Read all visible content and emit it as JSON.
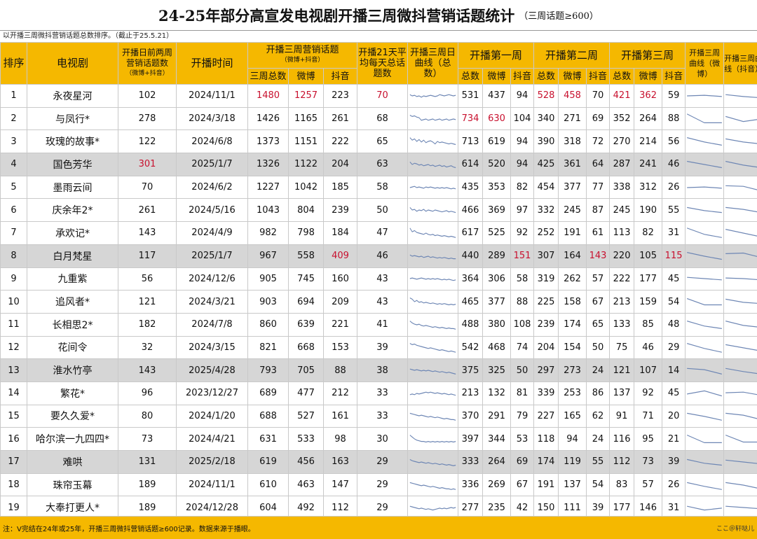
{
  "title": "24-25年部分高宣发电视剧开播三周微抖营销话题统计",
  "title_sub": "（三周话题≥600）",
  "note_top": "以开播三周微抖营销话题总数排序。（截止于25.5.21）",
  "headers": {
    "rank": "排序",
    "drama": "电视剧",
    "pre_topics": "开播日前两周营销话题数",
    "pre_topics_sub": "（微博+抖音）",
    "air_date": "开播时间",
    "three_week": "开播三周营销话题",
    "three_week_sub": "（微博+抖音）",
    "avg": "开播21天平均每天总话题数",
    "curve": "开播三周日曲线（总数）",
    "week1": "开播第一周",
    "week2": "开播第二周",
    "week3": "开播第三周",
    "curve_weibo": "开播三周曲线（微博）",
    "curve_douyin": "开播三周曲线（抖音）",
    "total": "三周总数",
    "weibo": "微博",
    "douyin": "抖音",
    "w_total": "总数",
    "w_weibo": "微博",
    "w_douyin": "抖音"
  },
  "colors": {
    "header_bg": "#f5b800",
    "highlight_red": "#c8102e",
    "gray_row": "#d6d6d6",
    "spark_line": "#6d86b4"
  },
  "rows": [
    {
      "rank": "1",
      "name": "永夜星河",
      "pre": "102",
      "date": "2024/11/1",
      "total": "1480",
      "weibo": "1257",
      "douyin": "223",
      "avg": "70",
      "w1t": "531",
      "w1w": "437",
      "w1d": "94",
      "w2t": "528",
      "w2w": "458",
      "w2d": "70",
      "w3t": "421",
      "w3w": "362",
      "w3d": "59",
      "gray": false,
      "red": [
        "total",
        "weibo",
        "avg",
        "w2t",
        "w2w",
        "w3t",
        "w3w"
      ],
      "spark": [
        0.4,
        0.5,
        0.45,
        0.55,
        0.5,
        0.6,
        0.5,
        0.55,
        0.5,
        0.45,
        0.5,
        0.55,
        0.5,
        0.4,
        0.45,
        0.5,
        0.45,
        0.4,
        0.45,
        0.5,
        0.45
      ],
      "sw": [
        0.5,
        0.45,
        0.55
      ],
      "sd": [
        0.4,
        0.55,
        0.65
      ]
    },
    {
      "rank": "2",
      "name": "与凤行*",
      "pre": "278",
      "date": "2024/3/18",
      "total": "1426",
      "weibo": "1165",
      "douyin": "261",
      "avg": "68",
      "w1t": "734",
      "w1w": "630",
      "w1d": "104",
      "w2t": "340",
      "w2w": "271",
      "w2d": "69",
      "w3t": "352",
      "w3w": "264",
      "w3d": "88",
      "gray": false,
      "red": [
        "w1t",
        "w1w"
      ],
      "spark": [
        0.2,
        0.3,
        0.25,
        0.35,
        0.4,
        0.6,
        0.55,
        0.5,
        0.6,
        0.55,
        0.5,
        0.6,
        0.55,
        0.5,
        0.6,
        0.55,
        0.5,
        0.6,
        0.55,
        0.5,
        0.55
      ],
      "sw": [
        0.1,
        0.8,
        0.8
      ],
      "sd": [
        0.3,
        0.7,
        0.5
      ]
    },
    {
      "rank": "3",
      "name": "玫瑰的故事*",
      "pre": "122",
      "date": "2024/6/8",
      "total": "1373",
      "weibo": "1151",
      "douyin": "222",
      "avg": "65",
      "w1t": "713",
      "w1w": "619",
      "w1d": "94",
      "w2t": "390",
      "w2w": "318",
      "w2d": "72",
      "w3t": "270",
      "w3w": "214",
      "w3d": "56",
      "gray": false,
      "red": [],
      "spark": [
        0.2,
        0.4,
        0.3,
        0.5,
        0.35,
        0.55,
        0.4,
        0.6,
        0.5,
        0.45,
        0.55,
        0.7,
        0.5,
        0.6,
        0.55,
        0.6,
        0.65,
        0.7,
        0.65,
        0.7,
        0.75
      ],
      "sw": [
        0.2,
        0.55,
        0.8
      ],
      "sd": [
        0.3,
        0.55,
        0.7
      ]
    },
    {
      "rank": "4",
      "name": "国色芳华",
      "pre": "301",
      "date": "2025/1/7",
      "total": "1326",
      "weibo": "1122",
      "douyin": "204",
      "avg": "63",
      "w1t": "614",
      "w1w": "520",
      "w1d": "94",
      "w2t": "425",
      "w2w": "361",
      "w2d": "64",
      "w3t": "287",
      "w3w": "241",
      "w3d": "46",
      "gray": true,
      "red": [
        "pre"
      ],
      "spark": [
        0.3,
        0.5,
        0.4,
        0.45,
        0.55,
        0.5,
        0.6,
        0.55,
        0.5,
        0.6,
        0.55,
        0.65,
        0.6,
        0.55,
        0.65,
        0.6,
        0.7,
        0.65,
        0.6,
        0.7,
        0.75
      ],
      "sw": [
        0.25,
        0.5,
        0.75
      ],
      "sd": [
        0.25,
        0.55,
        0.75
      ]
    },
    {
      "rank": "5",
      "name": "墨雨云间",
      "pre": "70",
      "date": "2024/6/2",
      "total": "1227",
      "weibo": "1042",
      "douyin": "185",
      "avg": "58",
      "w1t": "435",
      "w1w": "353",
      "w1d": "82",
      "w2t": "454",
      "w2w": "377",
      "w2d": "77",
      "w3t": "338",
      "w3w": "312",
      "w3d": "26",
      "gray": false,
      "red": [],
      "spark": [
        0.5,
        0.45,
        0.4,
        0.5,
        0.45,
        0.5,
        0.55,
        0.45,
        0.5,
        0.45,
        0.5,
        0.55,
        0.5,
        0.55,
        0.5,
        0.55,
        0.5,
        0.55,
        0.6,
        0.55,
        0.6
      ],
      "sw": [
        0.5,
        0.45,
        0.55
      ],
      "sd": [
        0.35,
        0.4,
        0.75
      ]
    },
    {
      "rank": "6",
      "name": "庆余年2*",
      "pre": "261",
      "date": "2024/5/16",
      "total": "1043",
      "weibo": "804",
      "douyin": "239",
      "avg": "50",
      "w1t": "466",
      "w1w": "369",
      "w1d": "97",
      "w2t": "332",
      "w2w": "245",
      "w2d": "87",
      "w3t": "245",
      "w3w": "190",
      "w3d": "55",
      "gray": false,
      "red": [],
      "spark": [
        0.3,
        0.5,
        0.45,
        0.6,
        0.5,
        0.55,
        0.45,
        0.6,
        0.5,
        0.55,
        0.6,
        0.5,
        0.55,
        0.6,
        0.65,
        0.6,
        0.55,
        0.65,
        0.6,
        0.65,
        0.7
      ],
      "sw": [
        0.3,
        0.55,
        0.7
      ],
      "sd": [
        0.3,
        0.45,
        0.7
      ]
    },
    {
      "rank": "7",
      "name": "承欢记*",
      "pre": "143",
      "date": "2024/4/9",
      "total": "982",
      "weibo": "798",
      "douyin": "184",
      "avg": "47",
      "w1t": "617",
      "w1w": "525",
      "w1d": "92",
      "w2t": "252",
      "w2w": "191",
      "w2d": "61",
      "w3t": "113",
      "w3w": "82",
      "w3d": "31",
      "gray": false,
      "red": [],
      "spark": [
        0.1,
        0.4,
        0.3,
        0.45,
        0.5,
        0.55,
        0.6,
        0.5,
        0.6,
        0.65,
        0.6,
        0.7,
        0.65,
        0.7,
        0.75,
        0.7,
        0.75,
        0.8,
        0.75,
        0.8,
        0.85
      ],
      "sw": [
        0.1,
        0.6,
        0.85
      ],
      "sd": [
        0.2,
        0.5,
        0.8
      ]
    },
    {
      "rank": "8",
      "name": "白月梵星",
      "pre": "117",
      "date": "2025/1/7",
      "total": "967",
      "weibo": "558",
      "douyin": "409",
      "avg": "46",
      "w1t": "440",
      "w1w": "289",
      "w1d": "151",
      "w2t": "307",
      "w2w": "164",
      "w2d": "143",
      "w3t": "220",
      "w3w": "105",
      "w3d": "115",
      "gray": true,
      "red": [
        "douyin",
        "w1d",
        "w2d",
        "w3d"
      ],
      "spark": [
        0.4,
        0.5,
        0.45,
        0.5,
        0.55,
        0.5,
        0.6,
        0.55,
        0.5,
        0.6,
        0.55,
        0.6,
        0.65,
        0.6,
        0.65,
        0.6,
        0.65,
        0.7,
        0.65,
        0.7,
        0.7
      ],
      "sw": [
        0.2,
        0.5,
        0.75
      ],
      "sd": [
        0.3,
        0.25,
        0.6
      ]
    },
    {
      "rank": "9",
      "name": "九重紫",
      "pre": "56",
      "date": "2024/12/6",
      "total": "905",
      "weibo": "745",
      "douyin": "160",
      "avg": "43",
      "w1t": "364",
      "w1w": "306",
      "w1d": "58",
      "w2t": "319",
      "w2w": "262",
      "w2d": "57",
      "w3t": "222",
      "w3w": "177",
      "w3d": "45",
      "gray": false,
      "red": [],
      "spark": [
        0.5,
        0.45,
        0.5,
        0.55,
        0.5,
        0.45,
        0.5,
        0.55,
        0.5,
        0.55,
        0.5,
        0.55,
        0.5,
        0.55,
        0.6,
        0.55,
        0.6,
        0.55,
        0.6,
        0.65,
        0.6
      ],
      "sw": [
        0.4,
        0.5,
        0.6
      ],
      "sd": [
        0.45,
        0.5,
        0.6
      ]
    },
    {
      "rank": "10",
      "name": "追风者*",
      "pre": "121",
      "date": "2024/3/21",
      "total": "903",
      "weibo": "694",
      "douyin": "209",
      "avg": "43",
      "w1t": "465",
      "w1w": "377",
      "w1d": "88",
      "w2t": "225",
      "w2w": "158",
      "w2d": "67",
      "w3t": "213",
      "w3w": "159",
      "w3d": "54",
      "gray": false,
      "red": [],
      "spark": [
        0.2,
        0.3,
        0.5,
        0.4,
        0.55,
        0.5,
        0.6,
        0.55,
        0.6,
        0.65,
        0.6,
        0.65,
        0.7,
        0.65,
        0.7,
        0.65,
        0.7,
        0.75,
        0.7,
        0.75,
        0.7
      ],
      "sw": [
        0.25,
        0.75,
        0.75
      ],
      "sd": [
        0.3,
        0.55,
        0.65
      ]
    },
    {
      "rank": "11",
      "name": "长相思2*",
      "pre": "182",
      "date": "2024/7/8",
      "total": "860",
      "weibo": "639",
      "douyin": "221",
      "avg": "41",
      "w1t": "488",
      "w1w": "380",
      "w1d": "108",
      "w2t": "239",
      "w2w": "174",
      "w2d": "65",
      "w3t": "133",
      "w3w": "85",
      "w3d": "48",
      "gray": false,
      "red": [],
      "spark": [
        0.2,
        0.35,
        0.45,
        0.5,
        0.45,
        0.55,
        0.6,
        0.55,
        0.6,
        0.65,
        0.7,
        0.65,
        0.7,
        0.75,
        0.7,
        0.75,
        0.8,
        0.75,
        0.8,
        0.8,
        0.85
      ],
      "sw": [
        0.2,
        0.6,
        0.8
      ],
      "sd": [
        0.2,
        0.55,
        0.7
      ]
    },
    {
      "rank": "12",
      "name": "花间令",
      "pre": "32",
      "date": "2024/3/15",
      "total": "821",
      "weibo": "668",
      "douyin": "153",
      "avg": "39",
      "w1t": "542",
      "w1w": "468",
      "w1d": "74",
      "w2t": "204",
      "w2w": "154",
      "w2d": "50",
      "w3t": "75",
      "w3w": "46",
      "w3d": "29",
      "gray": false,
      "red": [],
      "spark": [
        0.2,
        0.3,
        0.25,
        0.35,
        0.4,
        0.45,
        0.5,
        0.55,
        0.6,
        0.55,
        0.6,
        0.65,
        0.7,
        0.75,
        0.7,
        0.75,
        0.8,
        0.85,
        0.8,
        0.85,
        0.9
      ],
      "sw": [
        0.2,
        0.6,
        0.9
      ],
      "sd": [
        0.3,
        0.55,
        0.8
      ]
    },
    {
      "rank": "13",
      "name": "淮水竹亭",
      "pre": "143",
      "date": "2025/4/28",
      "total": "793",
      "weibo": "705",
      "douyin": "88",
      "avg": "38",
      "w1t": "375",
      "w1w": "325",
      "w1d": "50",
      "w2t": "297",
      "w2w": "273",
      "w2d": "24",
      "w3t": "121",
      "w3w": "107",
      "w3d": "14",
      "gray": true,
      "red": [],
      "spark": [
        0.4,
        0.45,
        0.5,
        0.45,
        0.5,
        0.55,
        0.5,
        0.55,
        0.5,
        0.55,
        0.6,
        0.55,
        0.6,
        0.65,
        0.6,
        0.65,
        0.7,
        0.65,
        0.7,
        0.75,
        0.8
      ],
      "sw": [
        0.35,
        0.45,
        0.8
      ],
      "sd": [
        0.35,
        0.6,
        0.8
      ]
    },
    {
      "rank": "14",
      "name": "繁花*",
      "pre": "96",
      "date": "2023/12/27",
      "total": "689",
      "weibo": "477",
      "douyin": "212",
      "avg": "33",
      "w1t": "213",
      "w1w": "132",
      "w1d": "81",
      "w2t": "339",
      "w2w": "253",
      "w2d": "86",
      "w3t": "137",
      "w3w": "92",
      "w3d": "45",
      "gray": false,
      "red": [],
      "spark": [
        0.6,
        0.55,
        0.6,
        0.5,
        0.55,
        0.5,
        0.45,
        0.4,
        0.45,
        0.4,
        0.45,
        0.5,
        0.45,
        0.5,
        0.55,
        0.5,
        0.55,
        0.6,
        0.55,
        0.6,
        0.65
      ],
      "sw": [
        0.55,
        0.3,
        0.7
      ],
      "sd": [
        0.45,
        0.4,
        0.65
      ]
    },
    {
      "rank": "15",
      "name": "要久久爱*",
      "pre": "80",
      "date": "2024/1/20",
      "total": "688",
      "weibo": "527",
      "douyin": "161",
      "avg": "33",
      "w1t": "370",
      "w1w": "291",
      "w1d": "79",
      "w2t": "227",
      "w2w": "165",
      "w2d": "62",
      "w3t": "91",
      "w3w": "71",
      "w3d": "20",
      "gray": false,
      "red": [],
      "spark": [
        0.3,
        0.35,
        0.4,
        0.45,
        0.5,
        0.45,
        0.5,
        0.55,
        0.6,
        0.55,
        0.6,
        0.65,
        0.6,
        0.65,
        0.7,
        0.75,
        0.7,
        0.75,
        0.8,
        0.8,
        0.85
      ],
      "sw": [
        0.3,
        0.55,
        0.85
      ],
      "sd": [
        0.3,
        0.45,
        0.8
      ]
    },
    {
      "rank": "16",
      "name": "哈尔滨一九四四*",
      "pre": "73",
      "date": "2024/4/21",
      "total": "631",
      "weibo": "533",
      "douyin": "98",
      "avg": "30",
      "w1t": "397",
      "w1w": "344",
      "w1d": "53",
      "w2t": "118",
      "w2w": "94",
      "w2d": "24",
      "w3t": "116",
      "w3w": "95",
      "w3d": "21",
      "gray": false,
      "red": [],
      "spark": [
        0.2,
        0.35,
        0.5,
        0.6,
        0.65,
        0.7,
        0.7,
        0.75,
        0.7,
        0.75,
        0.7,
        0.75,
        0.7,
        0.75,
        0.7,
        0.75,
        0.7,
        0.75,
        0.7,
        0.75,
        0.7
      ],
      "sw": [
        0.2,
        0.8,
        0.8
      ],
      "sd": [
        0.2,
        0.75,
        0.75
      ]
    },
    {
      "rank": "17",
      "name": "难哄",
      "pre": "131",
      "date": "2025/2/18",
      "total": "619",
      "weibo": "456",
      "douyin": "163",
      "avg": "29",
      "w1t": "333",
      "w1w": "264",
      "w1d": "69",
      "w2t": "174",
      "w2w": "119",
      "w2d": "55",
      "w3t": "112",
      "w3w": "73",
      "w3d": "39",
      "gray": true,
      "red": [],
      "spark": [
        0.3,
        0.4,
        0.45,
        0.5,
        0.55,
        0.5,
        0.55,
        0.6,
        0.55,
        0.6,
        0.65,
        0.6,
        0.65,
        0.7,
        0.65,
        0.7,
        0.75,
        0.7,
        0.75,
        0.8,
        0.75
      ],
      "sw": [
        0.3,
        0.6,
        0.75
      ],
      "sd": [
        0.35,
        0.5,
        0.65
      ]
    },
    {
      "rank": "18",
      "name": "珠帘玉幕",
      "pre": "189",
      "date": "2024/11/1",
      "total": "610",
      "weibo": "463",
      "douyin": "147",
      "avg": "29",
      "w1t": "336",
      "w1w": "269",
      "w1d": "67",
      "w2t": "191",
      "w2w": "137",
      "w2d": "54",
      "w3t": "83",
      "w3w": "57",
      "w3d": "26",
      "gray": false,
      "red": [],
      "spark": [
        0.3,
        0.35,
        0.4,
        0.45,
        0.5,
        0.55,
        0.5,
        0.55,
        0.6,
        0.65,
        0.6,
        0.65,
        0.7,
        0.75,
        0.7,
        0.75,
        0.8,
        0.8,
        0.85,
        0.8,
        0.85
      ],
      "sw": [
        0.3,
        0.6,
        0.85
      ],
      "sd": [
        0.3,
        0.5,
        0.8
      ]
    },
    {
      "rank": "19",
      "name": "大奉打更人*",
      "pre": "189",
      "date": "2024/12/28",
      "total": "604",
      "weibo": "492",
      "douyin": "112",
      "avg": "29",
      "w1t": "277",
      "w1w": "235",
      "w1d": "42",
      "w2t": "150",
      "w2w": "111",
      "w2d": "39",
      "w3t": "177",
      "w3w": "146",
      "w3d": "31",
      "gray": false,
      "red": [],
      "spark": [
        0.4,
        0.45,
        0.5,
        0.55,
        0.6,
        0.55,
        0.6,
        0.65,
        0.6,
        0.65,
        0.7,
        0.65,
        0.6,
        0.55,
        0.6,
        0.55,
        0.6,
        0.55,
        0.5,
        0.55,
        0.5
      ],
      "sw": [
        0.4,
        0.7,
        0.55
      ],
      "sd": [
        0.4,
        0.5,
        0.6
      ]
    }
  ],
  "footer_note": "注：V完结在24年或25年，开播三周微抖营销话题≥600记录。数据来源于播眼。",
  "footer_credit": "ここ＠轩哒儿"
}
